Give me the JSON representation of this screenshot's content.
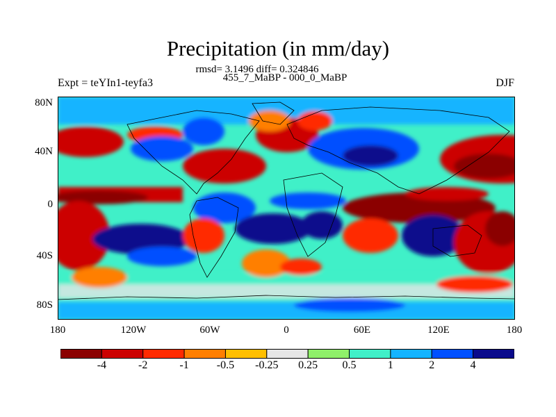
{
  "figure": {
    "title": "Precipitation (in mm/day)",
    "stats_line1": "rmsd= 3.1496 diff= 0.324846",
    "stats_line2": "455_7_MaBP - 000_0_MaBP",
    "left_label": "Expt = teYIn1-teyfa3",
    "right_label": "DJF"
  },
  "map": {
    "lat_ticks": [
      "80N",
      "40N",
      "0",
      "40S",
      "80S"
    ],
    "lon_ticks": [
      "180",
      "120W",
      "60W",
      "0",
      "60E",
      "120E",
      "180"
    ]
  },
  "colorbar": {
    "labels": [
      "-4",
      "-2",
      "-1",
      "-0.5",
      "-0.25",
      "0.25",
      "0.5",
      "1",
      "2",
      "4"
    ],
    "colors": [
      "#8b0000",
      "#cc0000",
      "#ff2a00",
      "#ff7f00",
      "#ffbf00",
      "#e6e6e6",
      "#8ff06a",
      "#40f0c8",
      "#14b4ff",
      "#0050ff",
      "#0a0a8c"
    ]
  }
}
